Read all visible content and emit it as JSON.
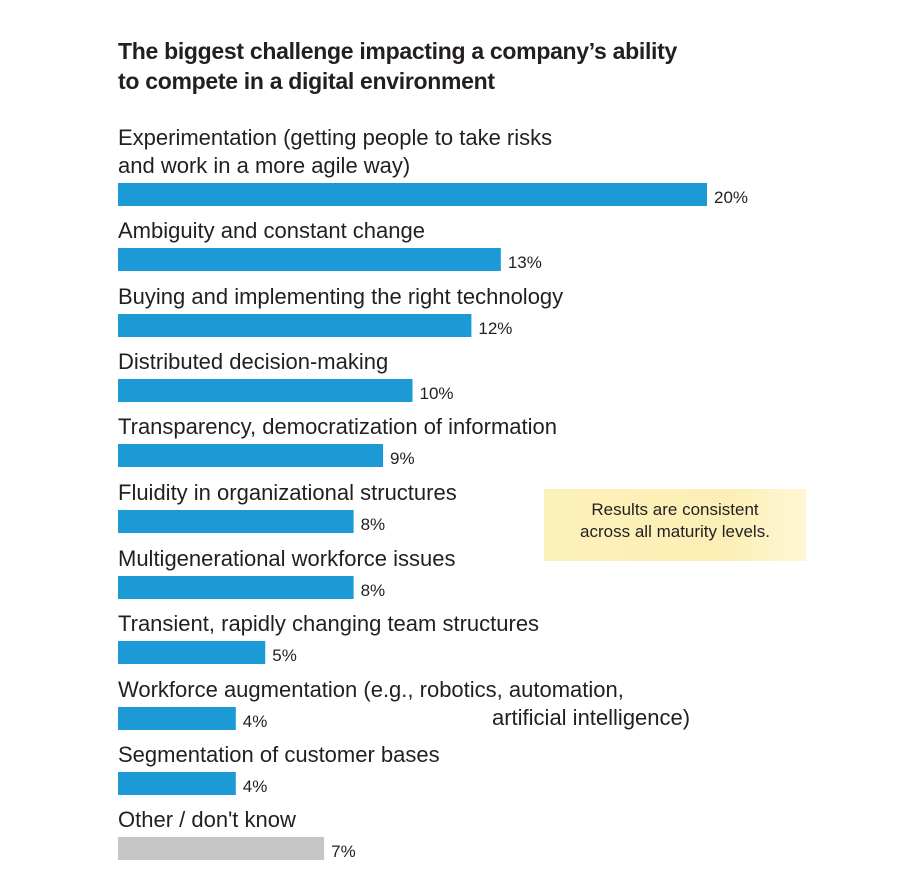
{
  "chart_data": {
    "type": "bar",
    "orientation": "horizontal",
    "title": "The biggest challenge impacting a company’s ability to compete in a digital environment",
    "title_lines": [
      "The biggest challenge impacting a company’s ability",
      "to compete in a digital environment"
    ],
    "categories": [
      "Experimentation (getting people to take risks and work in a more agile way)",
      "Ambiguity and constant change",
      "Buying and implementing the right technology",
      "Distributed decision-making",
      "Transparency, democratization of information",
      "Fluidity in organizational structures",
      "Multigenerational workforce issues",
      "Transient, rapidly changing team structures",
      "Workforce augmentation (e.g., robotics, automation, artificial intelligence)",
      "Segmentation of customer bases",
      "Other / don't know"
    ],
    "label_lines": [
      [
        "Experimentation (getting people to take risks",
        "and work in a more agile way)"
      ],
      [
        "Ambiguity and constant change"
      ],
      [
        "Buying and implementing the right technology"
      ],
      [
        "Distributed decision-making"
      ],
      [
        "Transparency, democratization of information"
      ],
      [
        "Fluidity in organizational structures"
      ],
      [
        "Multigenerational workforce issues"
      ],
      [
        "Transient, rapidly changing team structures"
      ],
      [
        "Workforce augmentation (e.g., robotics, automation,",
        "artificial intelligence)"
      ],
      [
        "Segmentation of customer bases"
      ],
      [
        "Other / don't know"
      ]
    ],
    "values": [
      20,
      13,
      12,
      10,
      9,
      8,
      8,
      5,
      4,
      4,
      7
    ],
    "value_labels": [
      "20%",
      "13%",
      "12%",
      "10%",
      "9%",
      "8%",
      "8%",
      "5%",
      "4%",
      "4%",
      "7%"
    ],
    "unit": "%",
    "colors": {
      "primary": "#1b9ad6",
      "other": "#c6c7c5",
      "note_background": "#fdf1bb"
    },
    "bar_color_by_category": [
      "primary",
      "primary",
      "primary",
      "primary",
      "primary",
      "primary",
      "primary",
      "primary",
      "primary",
      "primary",
      "other"
    ],
    "xlim": [
      0,
      20
    ],
    "grid": false,
    "legend": "none"
  },
  "note": {
    "lines": [
      "Results are consistent",
      "across all maturity levels."
    ]
  }
}
